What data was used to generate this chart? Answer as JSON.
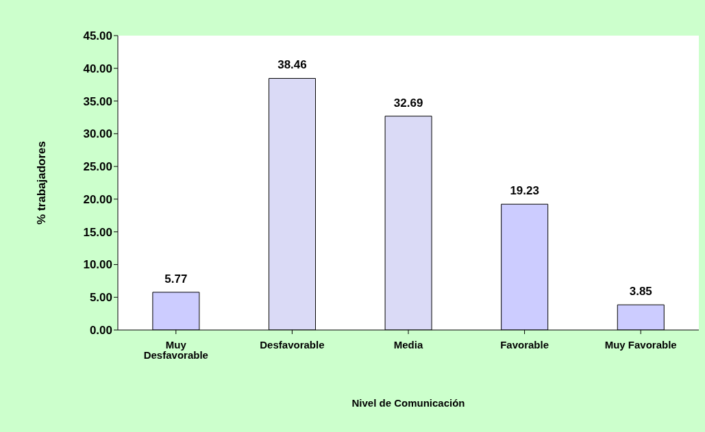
{
  "chart_data": {
    "type": "bar",
    "xlabel": "Nivel de Comunicación",
    "ylabel": "% trabajadores",
    "categories": [
      "Muy Desfavorable",
      "Desfavorable",
      "Media",
      "Favorable",
      "Muy Favorable"
    ],
    "values": [
      5.77,
      38.46,
      32.69,
      19.23,
      3.85
    ],
    "colors": [
      "#ccccff",
      "#dadaf6",
      "#dadaf6",
      "#ccccff",
      "#ccccff"
    ],
    "ylim": [
      0,
      45
    ],
    "yticks": [
      {
        "value": 0,
        "label": "0.00"
      },
      {
        "value": 5,
        "label": "5.00"
      },
      {
        "value": 10,
        "label": "10.00"
      },
      {
        "value": 15,
        "label": "15.00"
      },
      {
        "value": 20,
        "label": "20.00"
      },
      {
        "value": 25,
        "label": "25.00"
      },
      {
        "value": 30,
        "label": "30.00"
      },
      {
        "value": 35,
        "label": "35.00"
      },
      {
        "value": 40,
        "label": "40.00"
      },
      {
        "value": 45,
        "label": "45.00"
      }
    ],
    "data_labels": true,
    "legend": false
  }
}
